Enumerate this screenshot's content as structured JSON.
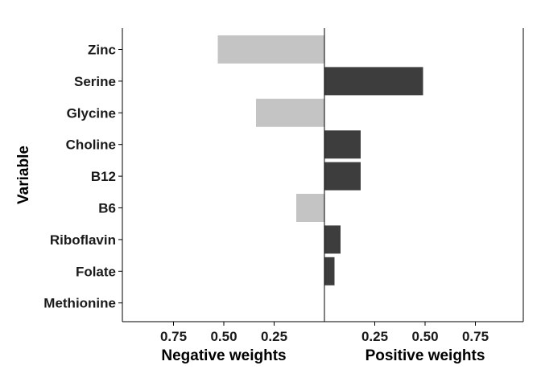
{
  "chart_data": {
    "type": "bar",
    "orientation": "horizontal",
    "categories": [
      "Zinc",
      "Serine",
      "Glycine",
      "Choline",
      "B12",
      "B6",
      "Riboflavin",
      "Folate",
      "Methionine"
    ],
    "values": [
      -0.53,
      0.49,
      -0.34,
      0.18,
      0.18,
      -0.14,
      0.08,
      0.05,
      0.0
    ],
    "xlim": [
      -1.0,
      1.0
    ],
    "negative_ticks": [
      0.75,
      0.5,
      0.25
    ],
    "negative_tick_labels": [
      "0.75",
      "0.50",
      "0.25"
    ],
    "positive_ticks": [
      0.25,
      0.5,
      0.75
    ],
    "positive_tick_labels": [
      "0.25",
      "0.50",
      "0.75"
    ],
    "xlabel_negative": "Negative weights",
    "xlabel_positive": "Positive weights",
    "ylabel": "Variable",
    "grid": false,
    "legend": "none",
    "colors": {
      "negative": "#c4c4c4",
      "positive": "#3d3d3d",
      "axis": "#000000"
    }
  }
}
